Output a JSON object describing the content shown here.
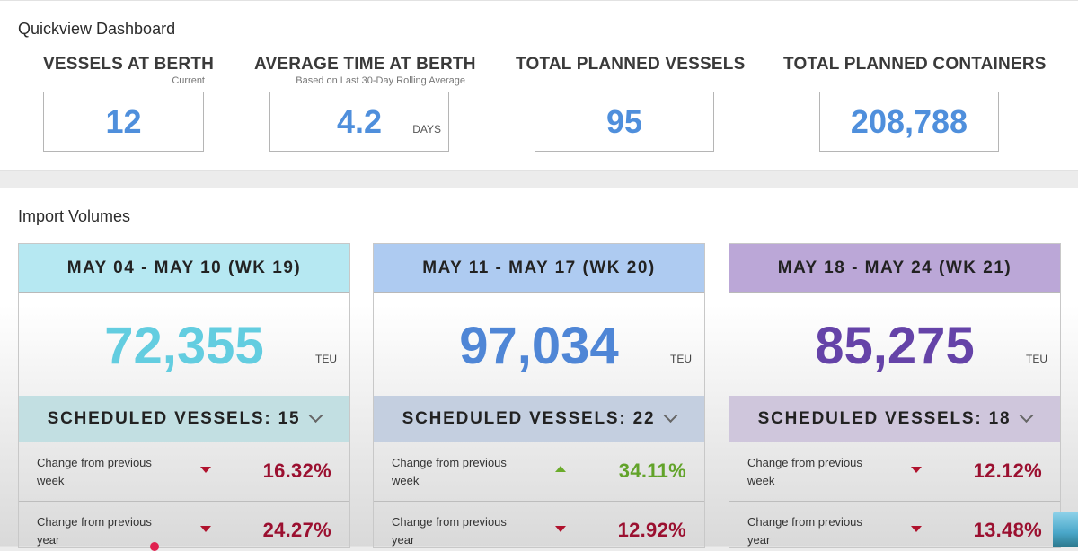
{
  "quickview": {
    "title": "Quickview Dashboard",
    "kpis": [
      {
        "label": "VESSELS AT BERTH",
        "sub": "Current",
        "value": "12",
        "unit": ""
      },
      {
        "label": "AVERAGE TIME AT BERTH",
        "sub": "Based on Last 30-Day Rolling Average",
        "value": "4.2",
        "unit": "DAYS"
      },
      {
        "label": "TOTAL PLANNED VESSELS",
        "sub": "",
        "value": "95",
        "unit": ""
      },
      {
        "label": "TOTAL PLANNED CONTAINERS",
        "sub": "",
        "value": "208,788",
        "unit": ""
      }
    ]
  },
  "import_volumes": {
    "title": "Import Volumes",
    "cards": [
      {
        "week": "MAY 04 - MAY 10 (WK 19)",
        "value": "72,355",
        "unit": "TEU",
        "scheduled": "SCHEDULED VESSELS: 15",
        "header_color": "#b6e8f2",
        "value_color": "#63cde0",
        "sched_color": "#c2dfe2",
        "rows": [
          {
            "label": "Change from previous week",
            "direction": "down",
            "value": "16.32%"
          },
          {
            "label": "Change from previous year",
            "direction": "down",
            "value": "24.27%"
          }
        ]
      },
      {
        "week": "MAY 11 - MAY 17 (WK 20)",
        "value": "97,034",
        "unit": "TEU",
        "scheduled": "SCHEDULED VESSELS: 22",
        "header_color": "#aecbf1",
        "value_color": "#4f86d6",
        "sched_color": "#c4cfe0",
        "rows": [
          {
            "label": "Change from previous week",
            "direction": "up",
            "value": "34.11%"
          },
          {
            "label": "Change from previous year",
            "direction": "down",
            "value": "12.92%"
          }
        ]
      },
      {
        "week": "MAY 18 - MAY 24 (WK 21)",
        "value": "85,275",
        "unit": "TEU",
        "scheduled": "SCHEDULED VESSELS: 18",
        "header_color": "#bba7d7",
        "value_color": "#6543a8",
        "sched_color": "#cfc6dc",
        "rows": [
          {
            "label": "Change from previous week",
            "direction": "down",
            "value": "12.12%"
          },
          {
            "label": "Change from previous year",
            "direction": "down",
            "value": "13.48%"
          }
        ]
      }
    ]
  },
  "icons": {
    "chevron": "chevron-down-icon",
    "down": "arrow-down-icon",
    "up": "arrow-up-icon"
  }
}
